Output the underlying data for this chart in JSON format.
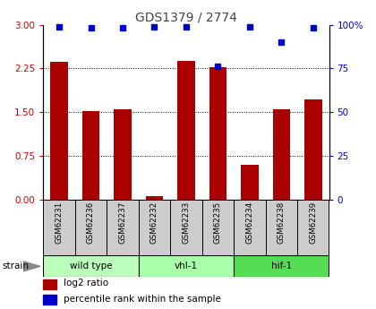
{
  "title": "GDS1379 / 2774",
  "samples": [
    "GSM62231",
    "GSM62236",
    "GSM62237",
    "GSM62232",
    "GSM62233",
    "GSM62235",
    "GSM62234",
    "GSM62238",
    "GSM62239"
  ],
  "log2_ratio": [
    2.37,
    1.52,
    1.55,
    0.05,
    2.38,
    2.27,
    0.6,
    1.55,
    1.72
  ],
  "percentile_rank": [
    99,
    98,
    98,
    99,
    99,
    76,
    99,
    90,
    98
  ],
  "groups": [
    {
      "label": "wild type",
      "start": 0,
      "end": 3,
      "color": "#bbffbb"
    },
    {
      "label": "vhl-1",
      "start": 3,
      "end": 6,
      "color": "#aaffaa"
    },
    {
      "label": "hif-1",
      "start": 6,
      "end": 9,
      "color": "#55dd55"
    }
  ],
  "ylim_left": [
    0,
    3
  ],
  "ylim_right": [
    0,
    100
  ],
  "yticks_left": [
    0,
    0.75,
    1.5,
    2.25,
    3
  ],
  "yticks_right": [
    0,
    25,
    50,
    75,
    100
  ],
  "ytick_labels_right": [
    "0",
    "25",
    "50",
    "75",
    "100%"
  ],
  "bar_color": "#aa0000",
  "dot_color": "#0000cc",
  "left_axis_color": "#cc0000",
  "right_axis_color": "#0000cc",
  "title_color": "#444444",
  "sample_box_color": "#cccccc",
  "bar_width": 0.55
}
